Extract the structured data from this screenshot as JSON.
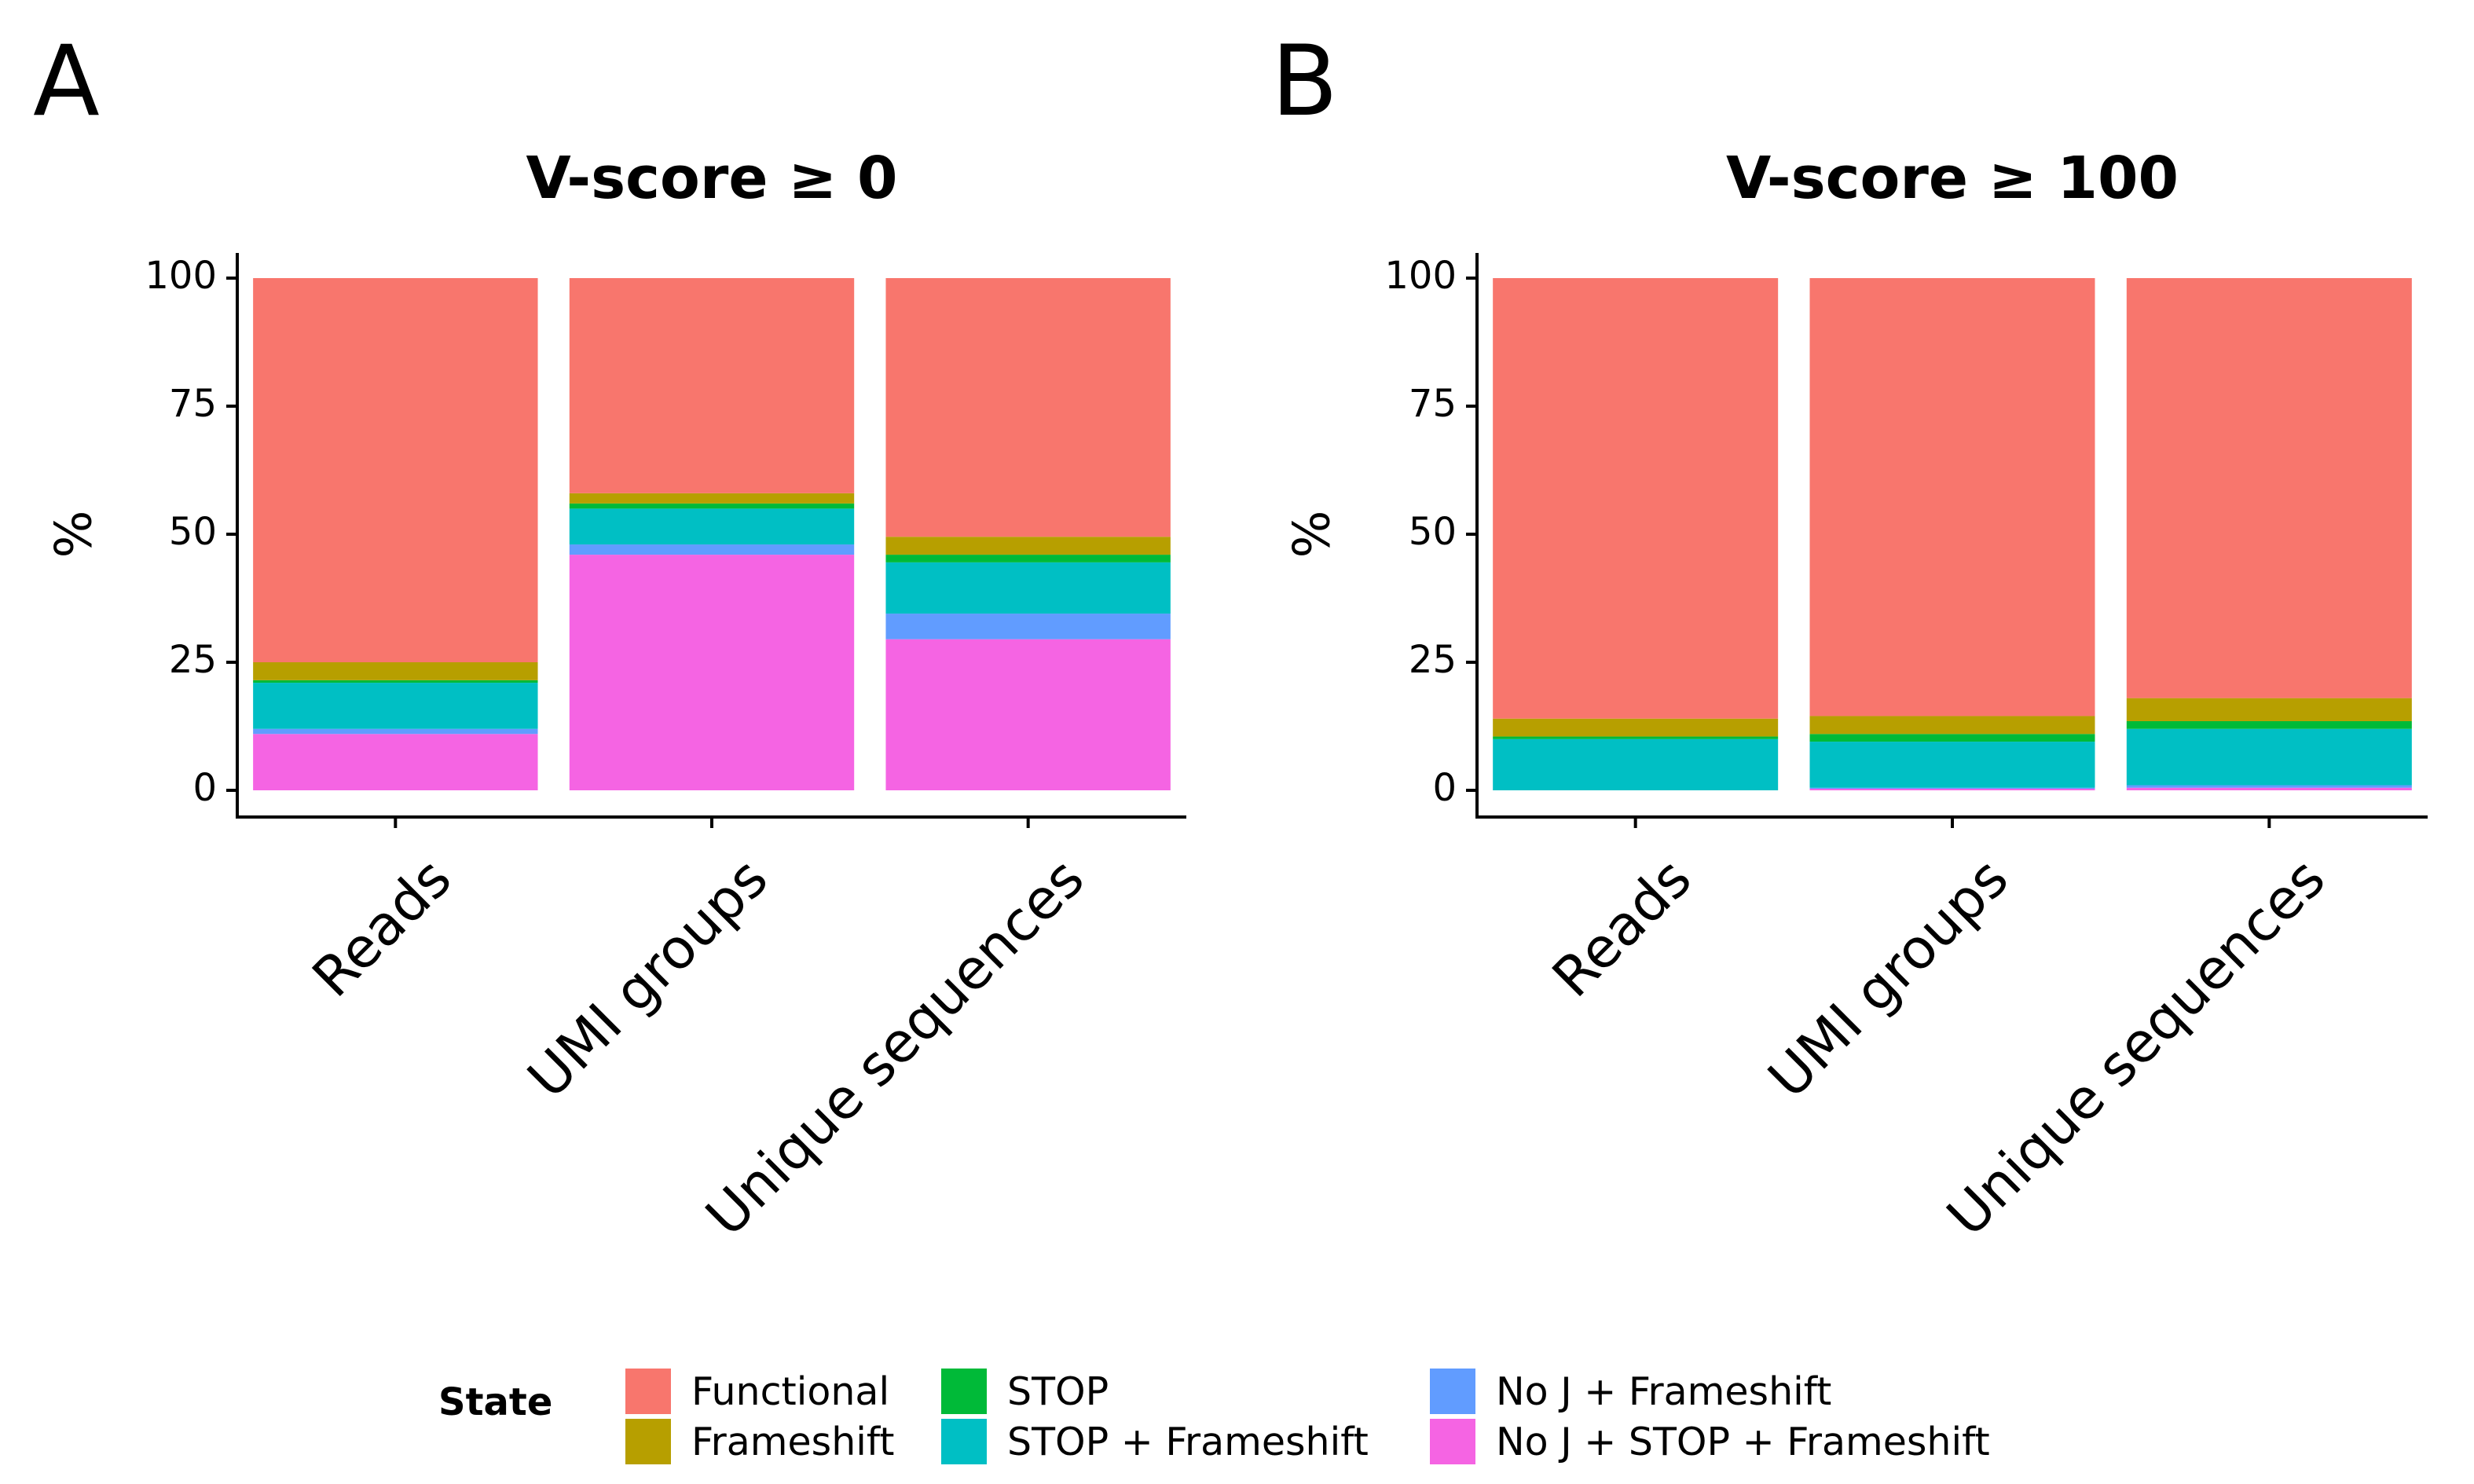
{
  "panels": {
    "a": {
      "letter": "A"
    },
    "b": {
      "letter": "B"
    }
  },
  "legend": {
    "title": "State",
    "items": [
      {
        "label": "Functional",
        "color": "#F8766D"
      },
      {
        "label": "Frameshift",
        "color": "#B79F00"
      },
      {
        "label": "STOP",
        "color": "#00BA38"
      },
      {
        "label": "STOP + Frameshift",
        "color": "#00BFC4"
      },
      {
        "label": "No J + Frameshift",
        "color": "#619CFF"
      },
      {
        "label": "No J + STOP + Frameshift",
        "color": "#F564E3"
      }
    ]
  },
  "chart_data": [
    {
      "type": "bar",
      "stacked": true,
      "title": "V-score ≥ 0",
      "xlabel": "",
      "ylabel": "%",
      "ylim": [
        0,
        100
      ],
      "yticks": [
        0,
        25,
        50,
        75,
        100
      ],
      "categories": [
        "Reads",
        "UMI groups",
        "Unique sequences"
      ],
      "series": [
        {
          "name": "No J + STOP + Frameshift",
          "values": [
            11,
            46,
            29.5
          ]
        },
        {
          "name": "No J + Frameshift",
          "values": [
            1,
            2,
            5
          ]
        },
        {
          "name": "STOP + Frameshift",
          "values": [
            9,
            7,
            10
          ]
        },
        {
          "name": "STOP",
          "values": [
            0.5,
            1,
            1.5
          ]
        },
        {
          "name": "Frameshift",
          "values": [
            3.5,
            2,
            3.5
          ]
        },
        {
          "name": "Functional",
          "values": [
            75,
            42,
            50.5
          ]
        }
      ]
    },
    {
      "type": "bar",
      "stacked": true,
      "title": "V-score ≥ 100",
      "xlabel": "",
      "ylabel": "%",
      "ylim": [
        0,
        100
      ],
      "yticks": [
        0,
        25,
        50,
        75,
        100
      ],
      "categories": [
        "Reads",
        "UMI groups",
        "Unique sequences"
      ],
      "series": [
        {
          "name": "No J + STOP + Frameshift",
          "values": [
            0,
            0.3,
            0.5
          ]
        },
        {
          "name": "No J + Frameshift",
          "values": [
            0,
            0.2,
            0.5
          ]
        },
        {
          "name": "STOP + Frameshift",
          "values": [
            10,
            9,
            11
          ]
        },
        {
          "name": "STOP",
          "values": [
            0.5,
            1.5,
            1.5
          ]
        },
        {
          "name": "Frameshift",
          "values": [
            3.5,
            3.5,
            4.5
          ]
        },
        {
          "name": "Functional",
          "values": [
            86,
            85.5,
            82
          ]
        }
      ]
    }
  ]
}
